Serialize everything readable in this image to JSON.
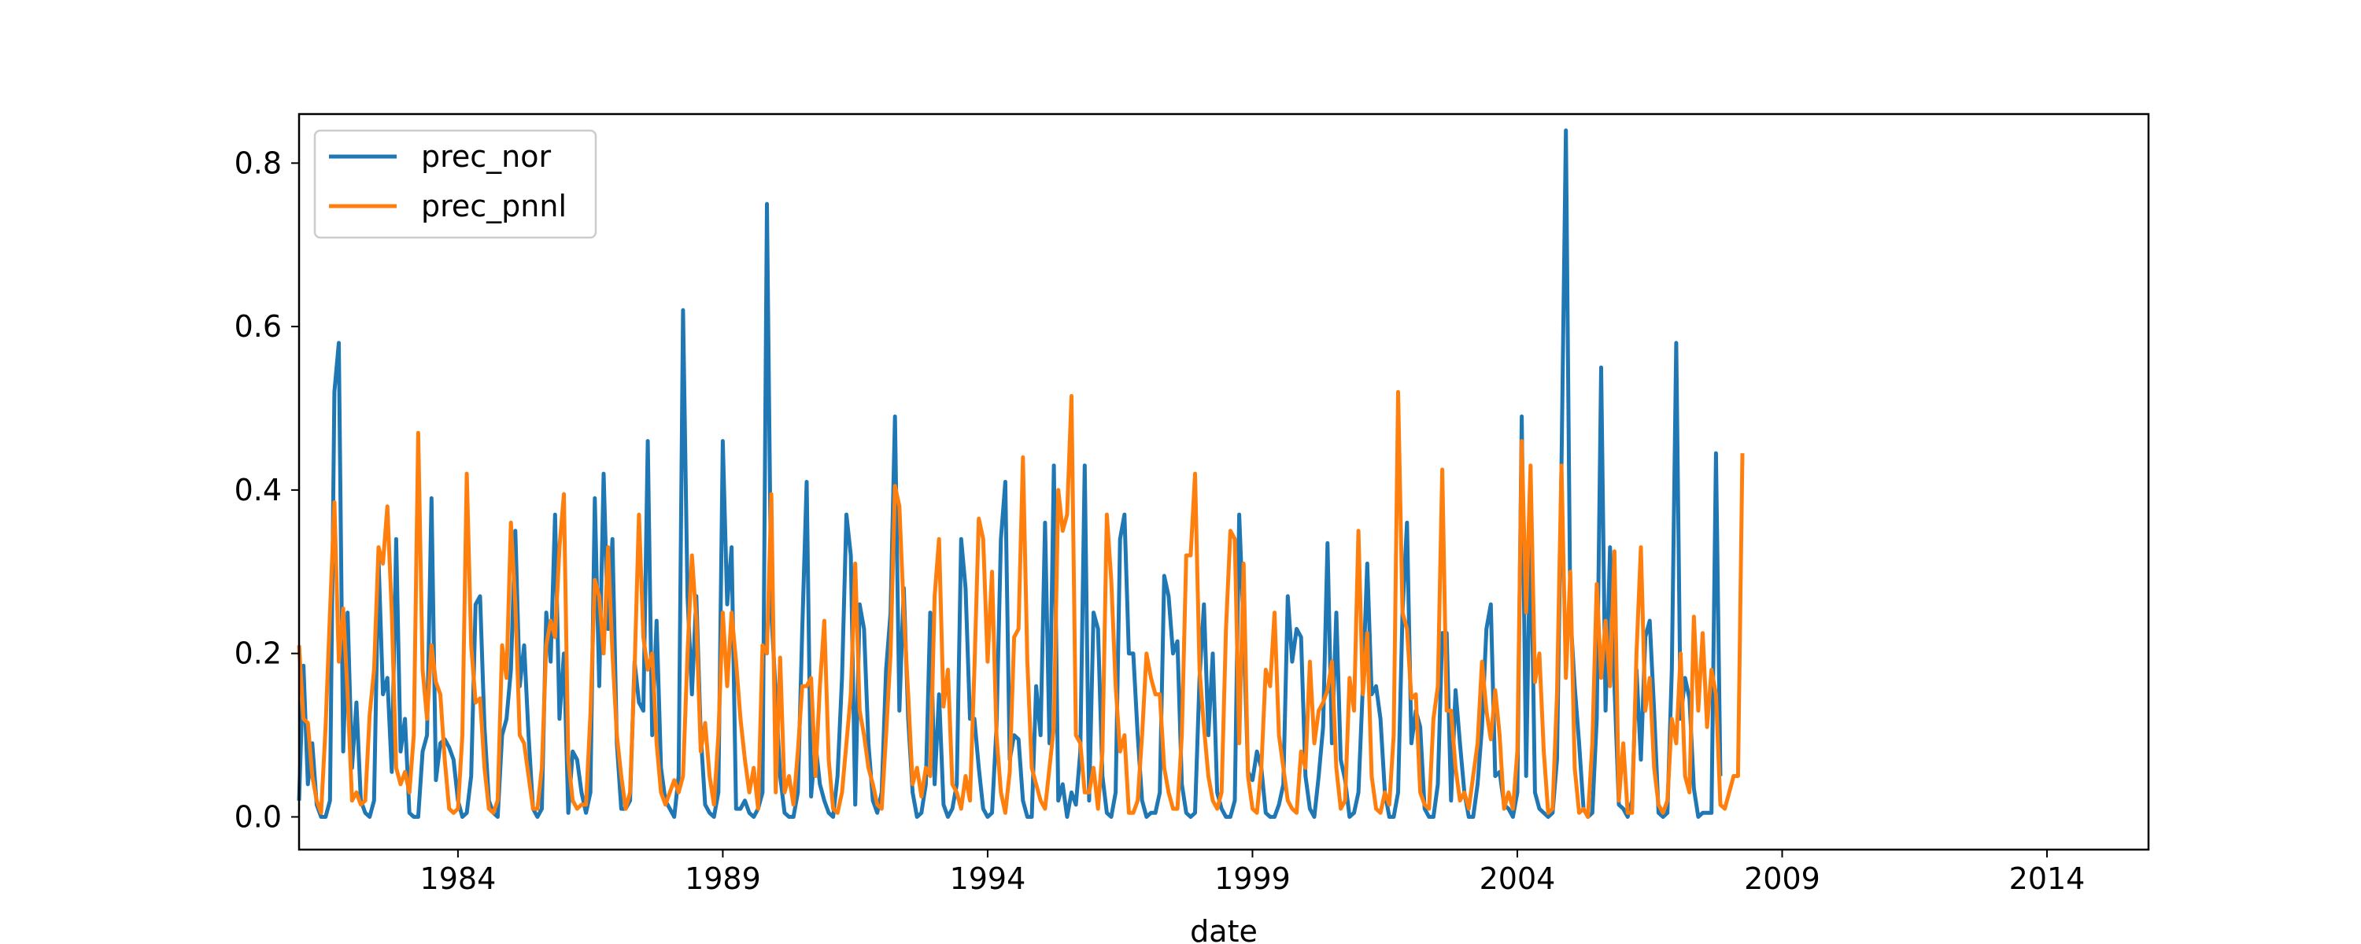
{
  "chart_data": {
    "type": "line",
    "title": "",
    "xlabel": "date",
    "ylabel": "",
    "xlim": [
      "1981-01",
      "2015-12"
    ],
    "ylim": [
      -0.04,
      0.86
    ],
    "x_ticks": [
      "1984",
      "1989",
      "1994",
      "1999",
      "2004",
      "2009",
      "2014"
    ],
    "y_ticks": [
      "0.0",
      "0.2",
      "0.4",
      "0.6",
      "0.8"
    ],
    "grid": false,
    "legend_position": "upper-left",
    "x_start": "1981-01",
    "series": [
      {
        "name": "prec_nor",
        "color": "#1f77b4",
        "values": [
          0.02,
          0.185,
          0.04,
          0.09,
          0.015,
          0.0,
          0.0,
          0.02,
          0.52,
          0.58,
          0.08,
          0.25,
          0.06,
          0.14,
          0.02,
          0.005,
          0.0,
          0.02,
          0.315,
          0.15,
          0.17,
          0.055,
          0.34,
          0.08,
          0.12,
          0.005,
          0.0,
          0.0,
          0.08,
          0.1,
          0.39,
          0.045,
          0.09,
          0.095,
          0.085,
          0.07,
          0.02,
          0.0,
          0.005,
          0.05,
          0.26,
          0.27,
          0.11,
          0.02,
          0.005,
          0.0,
          0.1,
          0.12,
          0.18,
          0.35,
          0.16,
          0.21,
          0.1,
          0.01,
          0.0,
          0.01,
          0.25,
          0.19,
          0.37,
          0.12,
          0.2,
          0.005,
          0.08,
          0.07,
          0.03,
          0.005,
          0.03,
          0.39,
          0.16,
          0.42,
          0.23,
          0.34,
          0.09,
          0.01,
          0.01,
          0.02,
          0.19,
          0.14,
          0.13,
          0.46,
          0.1,
          0.24,
          0.06,
          0.02,
          0.01,
          0.0,
          0.05,
          0.62,
          0.27,
          0.15,
          0.27,
          0.1,
          0.015,
          0.005,
          0.0,
          0.03,
          0.46,
          0.26,
          0.33,
          0.01,
          0.01,
          0.02,
          0.005,
          0.0,
          0.01,
          0.03,
          0.75,
          0.25,
          0.15,
          0.05,
          0.005,
          0.0,
          0.0,
          0.03,
          0.23,
          0.41,
          0.025,
          0.09,
          0.04,
          0.02,
          0.005,
          0.0,
          0.05,
          0.17,
          0.37,
          0.32,
          0.015,
          0.26,
          0.23,
          0.09,
          0.02,
          0.005,
          0.03,
          0.18,
          0.25,
          0.49,
          0.13,
          0.28,
          0.12,
          0.03,
          0.0,
          0.005,
          0.04,
          0.25,
          0.04,
          0.15,
          0.015,
          0.0,
          0.01,
          0.04,
          0.34,
          0.28,
          0.12,
          0.12,
          0.06,
          0.01,
          0.0,
          0.005,
          0.11,
          0.34,
          0.41,
          0.07,
          0.1,
          0.095,
          0.02,
          0.0,
          0.0,
          0.16,
          0.1,
          0.36,
          0.09,
          0.43,
          0.02,
          0.04,
          0.0,
          0.03,
          0.015,
          0.08,
          0.43,
          0.02,
          0.25,
          0.23,
          0.05,
          0.005,
          0.0,
          0.03,
          0.34,
          0.37,
          0.2,
          0.2,
          0.1,
          0.02,
          0.0,
          0.005,
          0.005,
          0.03,
          0.295,
          0.27,
          0.2,
          0.215,
          0.04,
          0.005,
          0.0,
          0.005,
          0.17,
          0.26,
          0.1,
          0.2,
          0.03,
          0.01,
          0.0,
          0.0,
          0.02,
          0.37,
          0.23,
          0.055,
          0.045,
          0.08,
          0.06,
          0.005,
          0.0,
          0.0,
          0.015,
          0.04,
          0.27,
          0.19,
          0.23,
          0.22,
          0.05,
          0.01,
          0.0,
          0.05,
          0.11,
          0.335,
          0.09,
          0.25,
          0.07,
          0.045,
          0.0,
          0.005,
          0.03,
          0.16,
          0.31,
          0.15,
          0.16,
          0.12,
          0.03,
          0.0,
          0.0,
          0.03,
          0.25,
          0.36,
          0.09,
          0.13,
          0.11,
          0.01,
          0.0,
          0.0,
          0.04,
          0.225,
          0.225,
          0.02,
          0.155,
          0.09,
          0.03,
          0.0,
          0.0,
          0.04,
          0.11,
          0.23,
          0.26,
          0.05,
          0.055,
          0.015,
          0.01,
          0.0,
          0.03,
          0.49,
          0.05,
          0.375,
          0.03,
          0.01,
          0.005,
          0.0,
          0.005,
          0.07,
          0.43,
          0.84,
          0.25,
          0.16,
          0.09,
          0.01,
          0.0,
          0.005,
          0.12,
          0.55,
          0.13,
          0.33,
          0.16,
          0.015,
          0.01,
          0.0,
          0.02,
          0.18,
          0.07,
          0.22,
          0.24,
          0.13,
          0.005,
          0.0,
          0.005,
          0.18,
          0.58,
          0.12,
          0.17,
          0.145,
          0.035,
          0.0,
          0.005,
          0.005,
          0.005,
          0.445,
          0.05
        ]
      },
      {
        "name": "prec_pnnl",
        "color": "#ff7f0e",
        "values": [
          0.21,
          0.12,
          0.115,
          0.05,
          0.02,
          0.005,
          0.11,
          0.25,
          0.385,
          0.19,
          0.255,
          0.15,
          0.02,
          0.03,
          0.015,
          0.02,
          0.125,
          0.18,
          0.33,
          0.31,
          0.38,
          0.25,
          0.06,
          0.04,
          0.055,
          0.03,
          0.1,
          0.47,
          0.18,
          0.12,
          0.21,
          0.165,
          0.15,
          0.07,
          0.01,
          0.005,
          0.01,
          0.1,
          0.42,
          0.21,
          0.14,
          0.145,
          0.06,
          0.01,
          0.005,
          0.02,
          0.21,
          0.17,
          0.36,
          0.26,
          0.1,
          0.09,
          0.05,
          0.01,
          0.01,
          0.06,
          0.21,
          0.24,
          0.22,
          0.33,
          0.395,
          0.07,
          0.02,
          0.01,
          0.015,
          0.015,
          0.125,
          0.29,
          0.27,
          0.2,
          0.33,
          0.2,
          0.1,
          0.05,
          0.01,
          0.03,
          0.18,
          0.37,
          0.22,
          0.18,
          0.2,
          0.09,
          0.03,
          0.015,
          0.03,
          0.045,
          0.03,
          0.05,
          0.2,
          0.32,
          0.24,
          0.08,
          0.115,
          0.05,
          0.015,
          0.1,
          0.25,
          0.16,
          0.25,
          0.19,
          0.12,
          0.07,
          0.03,
          0.06,
          0.01,
          0.21,
          0.2,
          0.395,
          0.03,
          0.195,
          0.03,
          0.05,
          0.015,
          0.08,
          0.16,
          0.16,
          0.17,
          0.05,
          0.16,
          0.24,
          0.07,
          0.01,
          0.005,
          0.03,
          0.09,
          0.15,
          0.31,
          0.13,
          0.1,
          0.06,
          0.04,
          0.015,
          0.01,
          0.1,
          0.2,
          0.405,
          0.38,
          0.25,
          0.15,
          0.04,
          0.06,
          0.025,
          0.06,
          0.05,
          0.27,
          0.34,
          0.135,
          0.18,
          0.04,
          0.03,
          0.01,
          0.05,
          0.02,
          0.18,
          0.365,
          0.34,
          0.19,
          0.3,
          0.1,
          0.03,
          0.005,
          0.055,
          0.22,
          0.23,
          0.44,
          0.19,
          0.06,
          0.04,
          0.02,
          0.01,
          0.06,
          0.11,
          0.4,
          0.35,
          0.37,
          0.515,
          0.1,
          0.09,
          0.03,
          0.03,
          0.06,
          0.01,
          0.08,
          0.37,
          0.29,
          0.16,
          0.08,
          0.1,
          0.005,
          0.005,
          0.02,
          0.1,
          0.2,
          0.17,
          0.15,
          0.15,
          0.06,
          0.03,
          0.01,
          0.01,
          0.1,
          0.32,
          0.32,
          0.42,
          0.18,
          0.11,
          0.05,
          0.02,
          0.01,
          0.03,
          0.23,
          0.35,
          0.34,
          0.09,
          0.31,
          0.05,
          0.01,
          0.005,
          0.06,
          0.18,
          0.16,
          0.25,
          0.1,
          0.06,
          0.02,
          0.01,
          0.005,
          0.08,
          0.06,
          0.19,
          0.09,
          0.13,
          0.14,
          0.155,
          0.19,
          0.06,
          0.01,
          0.02,
          0.17,
          0.13,
          0.35,
          0.15,
          0.225,
          0.05,
          0.01,
          0.005,
          0.03,
          0.015,
          0.1,
          0.52,
          0.25,
          0.23,
          0.145,
          0.15,
          0.03,
          0.015,
          0.01,
          0.12,
          0.16,
          0.425,
          0.13,
          0.13,
          0.06,
          0.02,
          0.03,
          0.01,
          0.05,
          0.09,
          0.19,
          0.13,
          0.095,
          0.155,
          0.1,
          0.01,
          0.03,
          0.01,
          0.08,
          0.46,
          0.25,
          0.43,
          0.165,
          0.2,
          0.08,
          0.005,
          0.01,
          0.15,
          0.43,
          0.17,
          0.3,
          0.06,
          0.005,
          0.01,
          0.0,
          0.09,
          0.285,
          0.17,
          0.24,
          0.16,
          0.325,
          0.02,
          0.09,
          0.005,
          0.005,
          0.2,
          0.33,
          0.13,
          0.17,
          0.06,
          0.015,
          0.005,
          0.02,
          0.12,
          0.09,
          0.2,
          0.05,
          0.03,
          0.245,
          0.13,
          0.225,
          0.11,
          0.18,
          0.15,
          0.015,
          0.01,
          0.03,
          0.05,
          0.05,
          0.445
        ]
      }
    ]
  }
}
